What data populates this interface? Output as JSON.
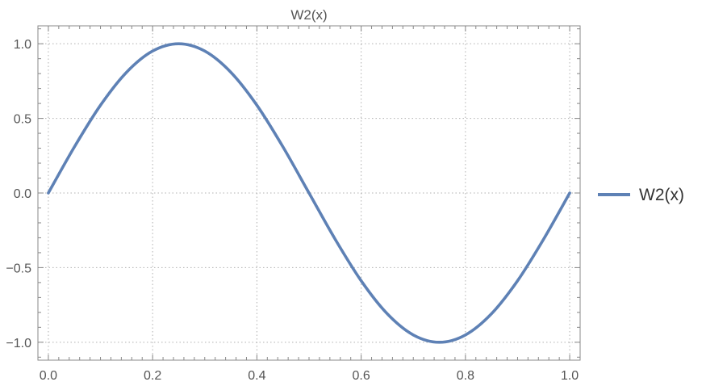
{
  "chart_data": {
    "type": "line",
    "title": "W2(x)",
    "xlabel": "",
    "ylabel": "",
    "xlim": [
      -0.02,
      1.02
    ],
    "ylim": [
      -1.12,
      1.12
    ],
    "x_ticks": [
      0.0,
      0.2,
      0.4,
      0.6,
      0.8,
      1.0
    ],
    "x_tick_labels": [
      "0.0",
      "0.2",
      "0.4",
      "0.6",
      "0.8",
      "1.0"
    ],
    "y_ticks": [
      1.0,
      0.5,
      0.0,
      -0.5,
      -1.0
    ],
    "y_tick_labels": [
      "1.0",
      "0.5",
      "0.0",
      "−0.5",
      "−1.0"
    ],
    "grid": true,
    "grid_style": "dotted",
    "legend_position": "right",
    "series": [
      {
        "name": "W2(x)",
        "color": "#5e81b5",
        "x": [
          0.0,
          0.05,
          0.1,
          0.15,
          0.2,
          0.25,
          0.3,
          0.35,
          0.4,
          0.45,
          0.5,
          0.55,
          0.6,
          0.65,
          0.7,
          0.75,
          0.8,
          0.85,
          0.9,
          0.95,
          1.0
        ],
        "y": [
          0.0,
          0.309,
          0.588,
          0.809,
          0.951,
          1.0,
          0.951,
          0.809,
          0.588,
          0.309,
          0.0,
          -0.309,
          -0.588,
          -0.809,
          -0.951,
          -1.0,
          -0.951,
          -0.809,
          -0.588,
          -0.309,
          0.0
        ]
      }
    ]
  }
}
